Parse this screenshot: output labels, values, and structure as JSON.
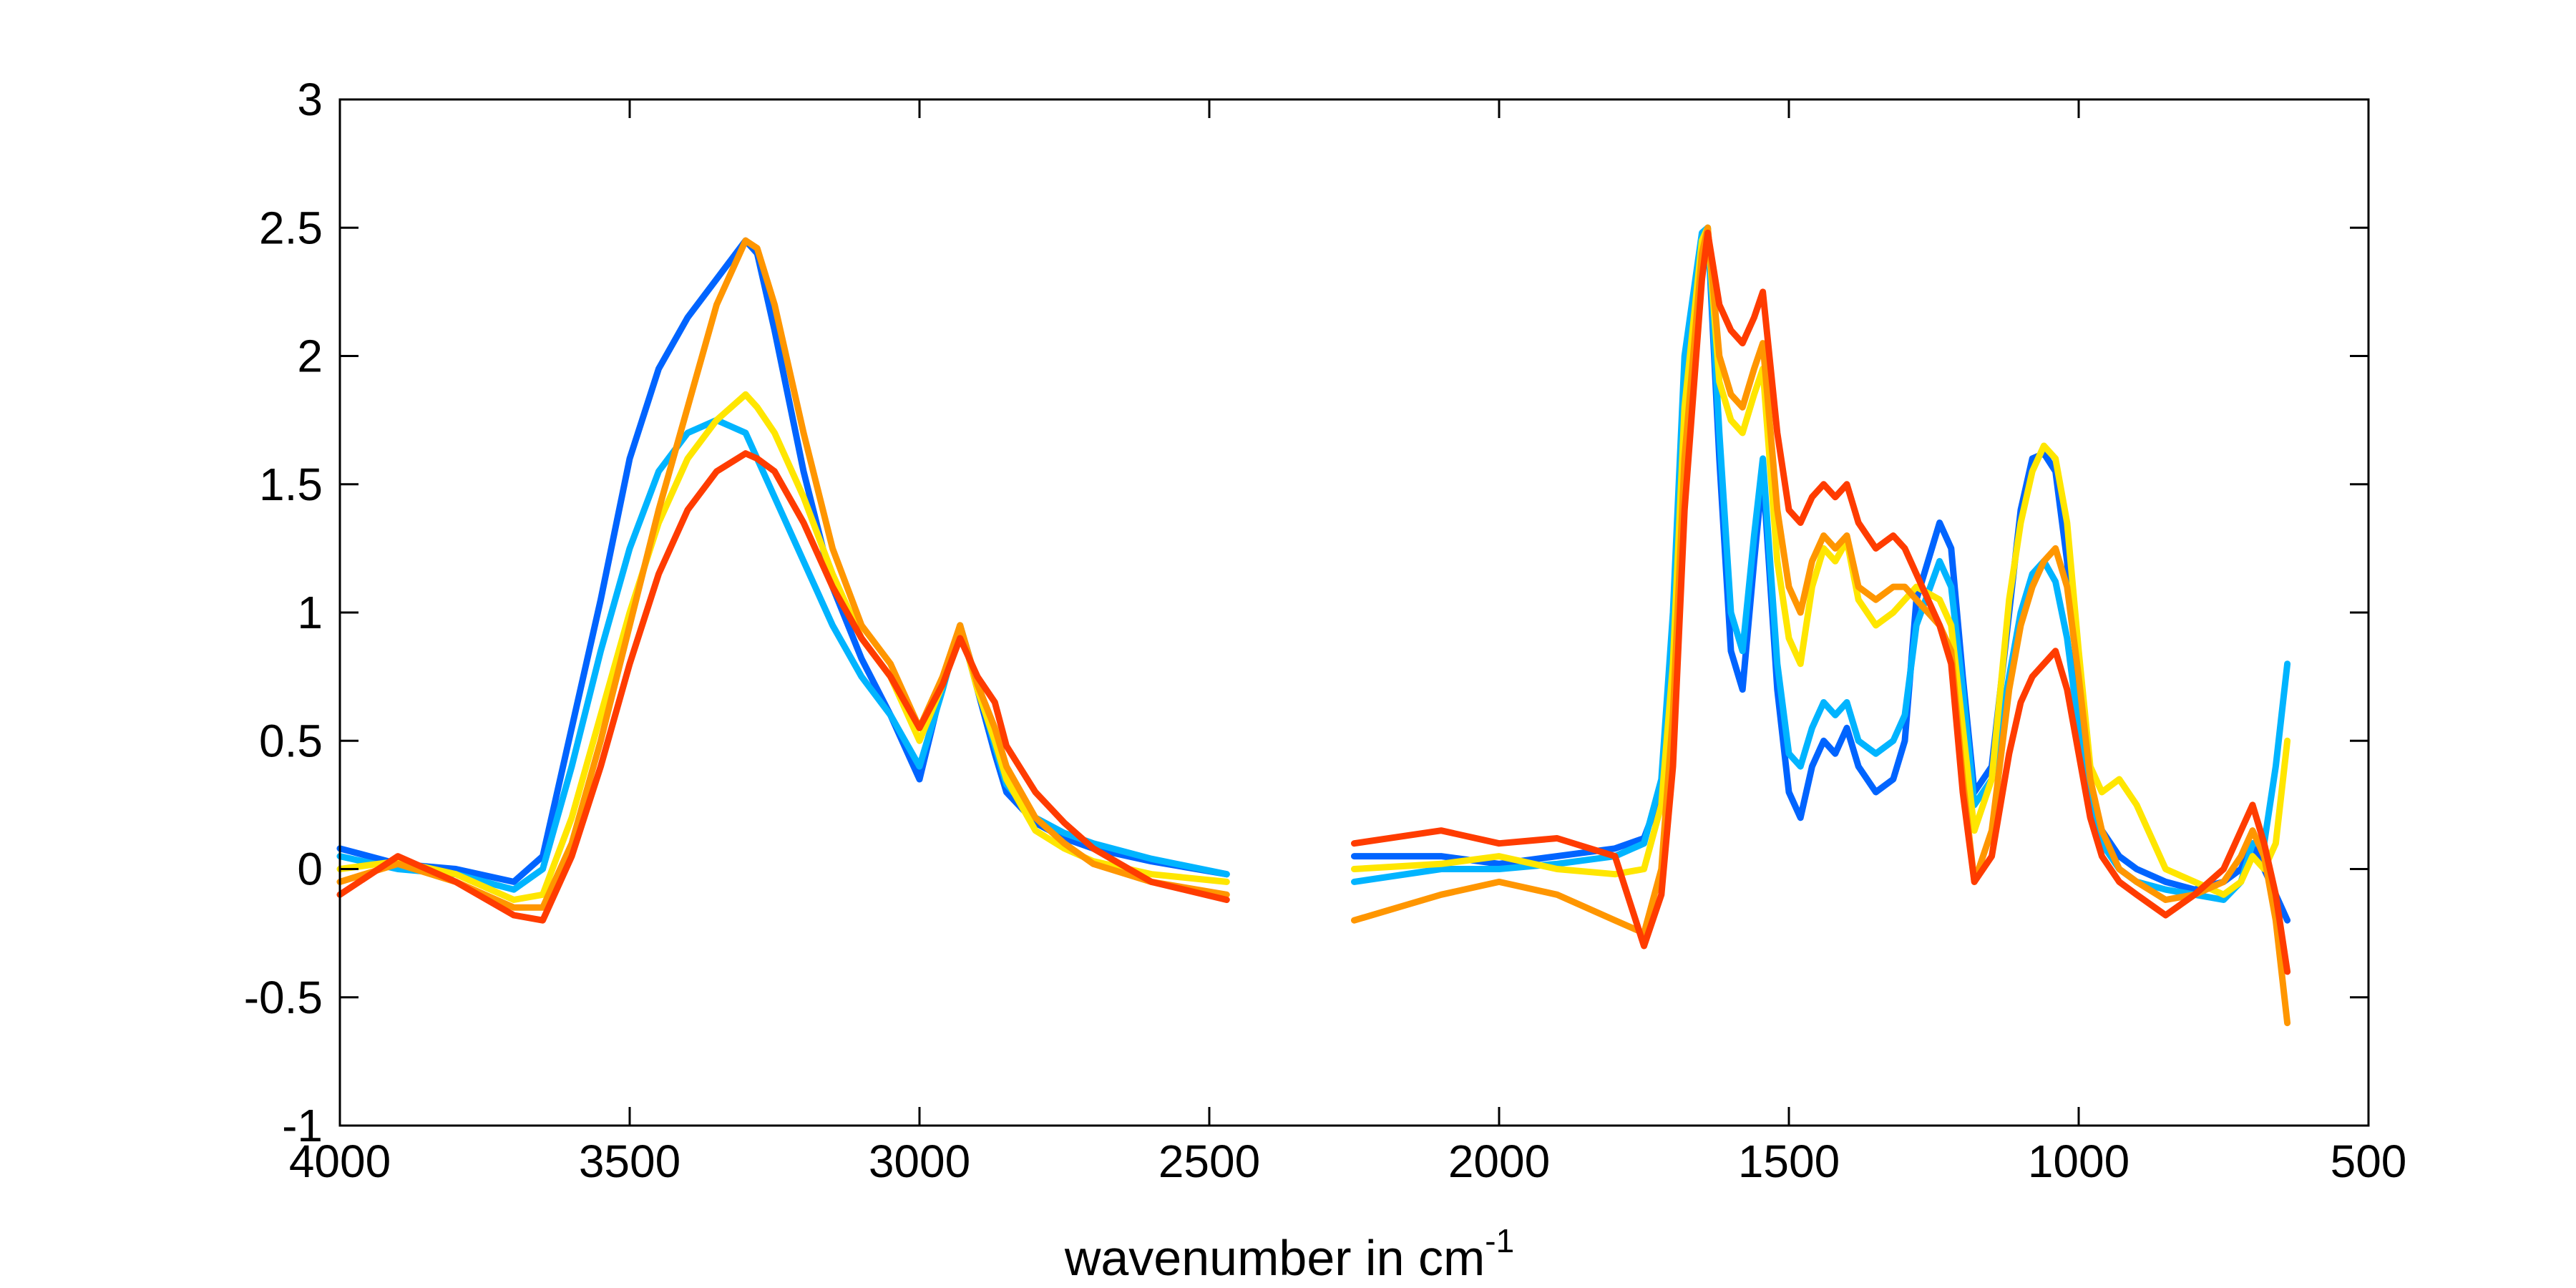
{
  "chart_data": {
    "type": "line",
    "title": "",
    "xlabel": "wavenumber in cm",
    "xlabel_superscript": "-1",
    "ylabel": "",
    "x_reversed": true,
    "xlim": [
      4000,
      500
    ],
    "ylim": [
      -1,
      3
    ],
    "xticks": [
      4000,
      3500,
      3000,
      2500,
      2000,
      1500,
      1000,
      500
    ],
    "xtick_labels": [
      "4000",
      "3500",
      "3000",
      "2500",
      "2000",
      "1500",
      "1000",
      "500"
    ],
    "yticks": [
      -1,
      -0.5,
      0,
      0.5,
      1,
      1.5,
      2,
      2.5,
      3
    ],
    "ytick_labels": [
      "-1",
      "-0.5",
      "0",
      "0.5",
      "1",
      "1.5",
      "2",
      "2.5",
      "3"
    ],
    "grid": false,
    "legend": "none",
    "colormap": "jet (blue to red)",
    "series": [
      {
        "color": "#0064ff",
        "segments": [
          {
            "x": [
              4000,
              3900,
              3800,
              3700,
              3650,
              3600,
              3550,
              3500,
              3450,
              3400,
              3350,
              3300,
              3280,
              3250,
              3200,
              3150,
              3100,
              3050,
              3000,
              2960,
              2930,
              2900,
              2870,
              2850,
              2800,
              2750,
              2700,
              2600,
              2470
            ],
            "y": [
              0.08,
              0.02,
              0.0,
              -0.05,
              0.05,
              0.55,
              1.05,
              1.6,
              1.95,
              2.15,
              2.3,
              2.45,
              2.4,
              2.1,
              1.55,
              1.1,
              0.82,
              0.6,
              0.35,
              0.72,
              0.95,
              0.7,
              0.45,
              0.3,
              0.18,
              0.12,
              0.08,
              0.03,
              -0.02
            ]
          },
          {
            "x": [
              2250,
              2100,
              2000,
              1900,
              1800,
              1750,
              1720,
              1700,
              1680,
              1650,
              1640,
              1620,
              1600,
              1580,
              1560,
              1545,
              1520,
              1500,
              1480,
              1460,
              1440,
              1420,
              1400,
              1380,
              1350,
              1320,
              1300,
              1280,
              1240,
              1220,
              1200,
              1180,
              1150,
              1120,
              1100,
              1080,
              1060,
              1040,
              1020,
              1000,
              980,
              960,
              930,
              900,
              850,
              800,
              750,
              720,
              700,
              680,
              660,
              640
            ],
            "y": [
              0.05,
              0.05,
              0.02,
              0.05,
              0.08,
              0.12,
              0.3,
              0.9,
              1.9,
              2.45,
              2.5,
              1.6,
              0.85,
              0.7,
              1.2,
              1.55,
              0.7,
              0.3,
              0.2,
              0.4,
              0.5,
              0.45,
              0.55,
              0.4,
              0.3,
              0.35,
              0.5,
              1.05,
              1.35,
              1.25,
              0.75,
              0.3,
              0.4,
              1.0,
              1.4,
              1.6,
              1.62,
              1.55,
              1.2,
              0.7,
              0.3,
              0.15,
              0.05,
              0.0,
              -0.05,
              -0.08,
              -0.05,
              0.0,
              0.1,
              0.0,
              -0.1,
              -0.2
            ]
          }
        ]
      },
      {
        "color": "#00b4ff",
        "segments": [
          {
            "x": [
              4000,
              3900,
              3800,
              3700,
              3650,
              3600,
              3550,
              3500,
              3450,
              3400,
              3350,
              3300,
              3280,
              3250,
              3200,
              3150,
              3100,
              3050,
              3000,
              2960,
              2930,
              2900,
              2870,
              2850,
              2800,
              2750,
              2700,
              2600,
              2470
            ],
            "y": [
              0.05,
              0.0,
              -0.02,
              -0.08,
              0.0,
              0.4,
              0.85,
              1.25,
              1.55,
              1.7,
              1.75,
              1.7,
              1.6,
              1.45,
              1.2,
              0.95,
              0.75,
              0.6,
              0.4,
              0.7,
              0.95,
              0.72,
              0.48,
              0.33,
              0.2,
              0.14,
              0.1,
              0.04,
              -0.02
            ]
          },
          {
            "x": [
              2250,
              2100,
              2000,
              1900,
              1800,
              1750,
              1720,
              1700,
              1680,
              1650,
              1640,
              1620,
              1600,
              1580,
              1560,
              1545,
              1520,
              1500,
              1480,
              1460,
              1440,
              1420,
              1400,
              1380,
              1350,
              1320,
              1300,
              1280,
              1240,
              1220,
              1200,
              1180,
              1150,
              1120,
              1100,
              1080,
              1060,
              1040,
              1020,
              1000,
              980,
              960,
              930,
              900,
              850,
              800,
              750,
              720,
              700,
              680,
              660,
              640
            ],
            "y": [
              -0.05,
              0.0,
              0.0,
              0.02,
              0.05,
              0.1,
              0.35,
              1.0,
              2.0,
              2.48,
              2.5,
              1.7,
              1.0,
              0.85,
              1.3,
              1.6,
              0.8,
              0.45,
              0.4,
              0.55,
              0.65,
              0.6,
              0.65,
              0.5,
              0.45,
              0.5,
              0.6,
              0.95,
              1.2,
              1.1,
              0.7,
              0.25,
              0.35,
              0.75,
              1.0,
              1.15,
              1.2,
              1.12,
              0.9,
              0.55,
              0.25,
              0.1,
              0.0,
              -0.05,
              -0.08,
              -0.1,
              -0.12,
              -0.05,
              0.1,
              0.1,
              0.4,
              0.8
            ]
          }
        ]
      },
      {
        "color": "#ffe600",
        "segments": [
          {
            "x": [
              4000,
              3900,
              3800,
              3700,
              3650,
              3600,
              3550,
              3500,
              3450,
              3400,
              3350,
              3300,
              3280,
              3250,
              3200,
              3150,
              3100,
              3050,
              3000,
              2960,
              2930,
              2900,
              2870,
              2850,
              2800,
              2750,
              2700,
              2600,
              2470
            ],
            "y": [
              0.0,
              0.03,
              -0.02,
              -0.12,
              -0.1,
              0.2,
              0.6,
              1.0,
              1.35,
              1.6,
              1.75,
              1.85,
              1.8,
              1.7,
              1.45,
              1.15,
              0.9,
              0.75,
              0.5,
              0.72,
              0.95,
              0.7,
              0.5,
              0.35,
              0.15,
              0.08,
              0.03,
              -0.02,
              -0.05
            ]
          },
          {
            "x": [
              2250,
              2100,
              2000,
              1900,
              1800,
              1750,
              1720,
              1700,
              1680,
              1650,
              1640,
              1620,
              1600,
              1580,
              1560,
              1545,
              1520,
              1500,
              1480,
              1460,
              1440,
              1420,
              1400,
              1380,
              1350,
              1320,
              1300,
              1280,
              1240,
              1220,
              1200,
              1180,
              1150,
              1120,
              1100,
              1080,
              1060,
              1040,
              1020,
              1000,
              980,
              960,
              930,
              900,
              850,
              800,
              750,
              720,
              700,
              680,
              660,
              640
            ],
            "y": [
              0.0,
              0.02,
              0.05,
              0.0,
              -0.02,
              0.0,
              0.25,
              0.8,
              1.8,
              2.45,
              2.5,
              1.9,
              1.75,
              1.7,
              1.85,
              1.95,
              1.2,
              0.9,
              0.8,
              1.1,
              1.25,
              1.2,
              1.28,
              1.05,
              0.95,
              1.0,
              1.05,
              1.1,
              1.05,
              0.95,
              0.55,
              0.15,
              0.35,
              1.05,
              1.35,
              1.55,
              1.65,
              1.6,
              1.35,
              0.85,
              0.4,
              0.3,
              0.35,
              0.25,
              0.0,
              -0.05,
              -0.1,
              -0.05,
              0.05,
              0.0,
              0.1,
              0.5
            ]
          }
        ]
      },
      {
        "color": "#ff9600",
        "segments": [
          {
            "x": [
              4000,
              3900,
              3800,
              3700,
              3650,
              3600,
              3550,
              3500,
              3450,
              3400,
              3350,
              3300,
              3280,
              3250,
              3200,
              3150,
              3100,
              3050,
              3000,
              2960,
              2930,
              2900,
              2870,
              2850,
              2800,
              2750,
              2700,
              2600,
              2470
            ],
            "y": [
              -0.05,
              0.02,
              -0.05,
              -0.15,
              -0.15,
              0.1,
              0.5,
              0.95,
              1.4,
              1.8,
              2.2,
              2.45,
              2.42,
              2.2,
              1.7,
              1.25,
              0.95,
              0.8,
              0.55,
              0.75,
              0.95,
              0.72,
              0.55,
              0.4,
              0.2,
              0.1,
              0.02,
              -0.05,
              -0.1
            ]
          },
          {
            "x": [
              2250,
              2100,
              2000,
              1900,
              1800,
              1750,
              1720,
              1700,
              1680,
              1650,
              1640,
              1620,
              1600,
              1580,
              1560,
              1545,
              1520,
              1500,
              1480,
              1460,
              1440,
              1420,
              1400,
              1380,
              1350,
              1320,
              1300,
              1280,
              1240,
              1220,
              1200,
              1180,
              1150,
              1120,
              1100,
              1080,
              1060,
              1040,
              1020,
              1000,
              980,
              960,
              930,
              900,
              850,
              800,
              750,
              720,
              700,
              680,
              660,
              640
            ],
            "y": [
              -0.2,
              -0.1,
              -0.05,
              -0.1,
              -0.2,
              -0.25,
              0.0,
              0.6,
              1.6,
              2.4,
              2.5,
              2.0,
              1.85,
              1.8,
              1.95,
              2.05,
              1.4,
              1.1,
              1.0,
              1.2,
              1.3,
              1.25,
              1.3,
              1.1,
              1.05,
              1.1,
              1.1,
              1.05,
              0.95,
              0.85,
              0.35,
              -0.05,
              0.15,
              0.7,
              0.95,
              1.1,
              1.2,
              1.25,
              1.1,
              0.75,
              0.35,
              0.15,
              0.0,
              -0.05,
              -0.12,
              -0.1,
              -0.05,
              0.05,
              0.15,
              0.05,
              -0.2,
              -0.6
            ]
          }
        ]
      },
      {
        "color": "#ff3c00",
        "segments": [
          {
            "x": [
              4000,
              3900,
              3800,
              3700,
              3650,
              3600,
              3550,
              3500,
              3450,
              3400,
              3350,
              3300,
              3280,
              3250,
              3200,
              3150,
              3100,
              3050,
              3000,
              2960,
              2930,
              2900,
              2870,
              2850,
              2800,
              2750,
              2700,
              2600,
              2470
            ],
            "y": [
              -0.1,
              0.05,
              -0.05,
              -0.18,
              -0.2,
              0.05,
              0.4,
              0.8,
              1.15,
              1.4,
              1.55,
              1.62,
              1.6,
              1.55,
              1.35,
              1.1,
              0.9,
              0.75,
              0.55,
              0.72,
              0.9,
              0.75,
              0.65,
              0.48,
              0.3,
              0.18,
              0.08,
              -0.05,
              -0.12
            ]
          },
          {
            "x": [
              2250,
              2100,
              2000,
              1900,
              1800,
              1750,
              1720,
              1700,
              1680,
              1650,
              1640,
              1620,
              1600,
              1580,
              1560,
              1545,
              1520,
              1500,
              1480,
              1460,
              1440,
              1420,
              1400,
              1380,
              1350,
              1320,
              1300,
              1280,
              1240,
              1220,
              1200,
              1180,
              1150,
              1120,
              1100,
              1080,
              1060,
              1040,
              1020,
              1000,
              980,
              960,
              930,
              900,
              850,
              800,
              750,
              720,
              700,
              680,
              660,
              640
            ],
            "y": [
              0.1,
              0.15,
              0.1,
              0.12,
              0.05,
              -0.3,
              -0.1,
              0.4,
              1.4,
              2.3,
              2.48,
              2.2,
              2.1,
              2.05,
              2.15,
              2.25,
              1.7,
              1.4,
              1.35,
              1.45,
              1.5,
              1.45,
              1.5,
              1.35,
              1.25,
              1.3,
              1.25,
              1.15,
              0.95,
              0.8,
              0.3,
              -0.05,
              0.05,
              0.45,
              0.65,
              0.75,
              0.8,
              0.85,
              0.7,
              0.45,
              0.2,
              0.05,
              -0.05,
              -0.1,
              -0.18,
              -0.1,
              0.0,
              0.15,
              0.25,
              0.1,
              -0.1,
              -0.4
            ]
          }
        ]
      }
    ]
  }
}
